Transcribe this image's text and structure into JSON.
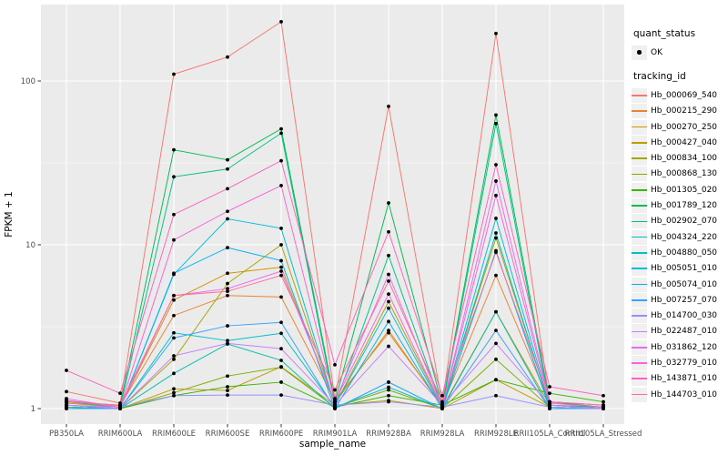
{
  "figure": {
    "background": "#FFFFFF",
    "panel_background": "#EBEBEB",
    "grid_color": "#FFFFFF",
    "axis_text_color": "#4D4D4D",
    "tick_color": "#333333",
    "point_color": "#000000",
    "legend_key_background": "#F0F0F0"
  },
  "legend": {
    "quant_status": {
      "title": "quant_status",
      "items": [
        {
          "label": "OK",
          "marker": "point-icon"
        }
      ]
    },
    "tracking_id": {
      "title": "tracking_id"
    }
  },
  "chart_data": {
    "type": "line",
    "title": "",
    "xlabel": "sample_name",
    "ylabel": "FPKM + 1",
    "y_scale": "log10",
    "y_ticks": [
      1,
      10,
      100
    ],
    "y_minor_ticks": [
      3.162,
      31.623
    ],
    "ylim": [
      0.81,
      290
    ],
    "grid": true,
    "legend_position": "right",
    "categories": [
      "PB350LA",
      "RRIM600LA",
      "RRIM600LE",
      "RRIM600SE",
      "RRIM600PE",
      "RRIM901LA",
      "RRIM928BA",
      "RRIM928LA",
      "RRIM928LE",
      "RRII105LA_Control",
      "RRII105LA_Stressed"
    ],
    "series": [
      {
        "name": "Hb_000069_540",
        "color": "#F8766D",
        "values": [
          1.27,
          1.08,
          110,
          140,
          230,
          1.15,
          70,
          1.08,
          195,
          1.1,
          1.05
        ]
      },
      {
        "name": "Hb_000215_290",
        "color": "#EA8331",
        "values": [
          1.12,
          1.04,
          3.7,
          4.9,
          4.8,
          1.12,
          2.9,
          1.04,
          6.5,
          1.08,
          1.02
        ]
      },
      {
        "name": "Hb_000270_250",
        "color": "#D89000",
        "values": [
          1.08,
          1.02,
          4.6,
          6.7,
          7.3,
          1.08,
          3.0,
          1.02,
          3.9,
          1.05,
          1.02
        ]
      },
      {
        "name": "Hb_000427_040",
        "color": "#C09B00",
        "values": [
          1.05,
          1.0,
          1.32,
          1.29,
          1.8,
          1.05,
          1.12,
          1.0,
          1.5,
          1.02,
          1.0
        ]
      },
      {
        "name": "Hb_000834_100",
        "color": "#A3A500",
        "values": [
          1.02,
          1.0,
          2.0,
          5.8,
          10.0,
          1.05,
          4.5,
          1.02,
          11.0,
          1.05,
          1.0
        ]
      },
      {
        "name": "Hb_000868_130",
        "color": "#7CAE00",
        "values": [
          1.02,
          1.0,
          1.25,
          1.58,
          1.79,
          1.02,
          1.3,
          1.0,
          2.0,
          1.02,
          1.0
        ]
      },
      {
        "name": "Hb_001305_020",
        "color": "#39B600",
        "values": [
          1.05,
          1.0,
          1.2,
          1.36,
          1.45,
          1.02,
          1.2,
          1.05,
          1.5,
          1.24,
          1.1
        ]
      },
      {
        "name": "Hb_001789_120",
        "color": "#00BB4E",
        "values": [
          1.1,
          1.05,
          38,
          33,
          51,
          1.1,
          18,
          1.05,
          62,
          1.1,
          1.02
        ]
      },
      {
        "name": "Hb_002902_070",
        "color": "#00C087",
        "values": [
          1.1,
          1.02,
          26,
          29,
          48,
          1.05,
          8.6,
          1.02,
          55,
          1.05,
          1.02
        ]
      },
      {
        "name": "Hb_004324_220",
        "color": "#00C1AB",
        "values": [
          1.02,
          1.0,
          1.64,
          2.48,
          1.97,
          1.0,
          1.45,
          1.0,
          3.9,
          1.0,
          1.0
        ]
      },
      {
        "name": "Hb_004880_050",
        "color": "#00BFC4",
        "values": [
          1.02,
          1.0,
          2.9,
          2.6,
          2.88,
          1.02,
          1.35,
          1.0,
          11.8,
          1.02,
          1.0
        ]
      },
      {
        "name": "Hb_005051_010",
        "color": "#00BAE0",
        "values": [
          1.0,
          1.0,
          6.6,
          14.4,
          12.6,
          1.05,
          4.1,
          1.0,
          14.5,
          1.05,
          1.0
        ]
      },
      {
        "name": "Hb_005074_010",
        "color": "#00B0F6",
        "values": [
          1.0,
          1.0,
          6.7,
          9.6,
          8.0,
          1.0,
          3.4,
          1.0,
          9.2,
          1.0,
          1.0
        ]
      },
      {
        "name": "Hb_007257_070",
        "color": "#35A2FF",
        "values": [
          1.0,
          1.0,
          2.7,
          3.2,
          3.36,
          1.0,
          1.45,
          1.0,
          3.0,
          1.0,
          1.0
        ]
      },
      {
        "name": "Hb_014700_030",
        "color": "#9590FF",
        "values": [
          1.05,
          1.02,
          1.2,
          1.21,
          1.21,
          1.05,
          1.1,
          1.02,
          1.2,
          1.02,
          1.0
        ]
      },
      {
        "name": "Hb_022487_010",
        "color": "#C77CFF",
        "values": [
          1.05,
          1.0,
          2.1,
          2.5,
          2.32,
          1.05,
          2.4,
          1.05,
          2.5,
          1.05,
          1.0
        ]
      },
      {
        "name": "Hb_031862_120",
        "color": "#E76BF3",
        "values": [
          1.15,
          1.02,
          4.9,
          5.4,
          6.9,
          1.1,
          6.6,
          1.02,
          24.5,
          1.1,
          1.05
        ]
      },
      {
        "name": "Hb_032779_010",
        "color": "#FA62DB",
        "values": [
          1.12,
          1.02,
          10.7,
          16,
          23,
          1.1,
          5.0,
          1.02,
          20,
          1.08,
          1.02
        ]
      },
      {
        "name": "Hb_143871_010",
        "color": "#FF62BC",
        "values": [
          1.71,
          1.24,
          15.3,
          22,
          32.6,
          1.85,
          12,
          1.2,
          30.8,
          1.36,
          1.2
        ]
      },
      {
        "name": "Hb_144703_010",
        "color": "#FF6A98",
        "values": [
          1.1,
          1.05,
          4.9,
          5.2,
          6.5,
          1.3,
          6.0,
          1.1,
          9.0,
          1.1,
          1.05
        ]
      }
    ]
  }
}
